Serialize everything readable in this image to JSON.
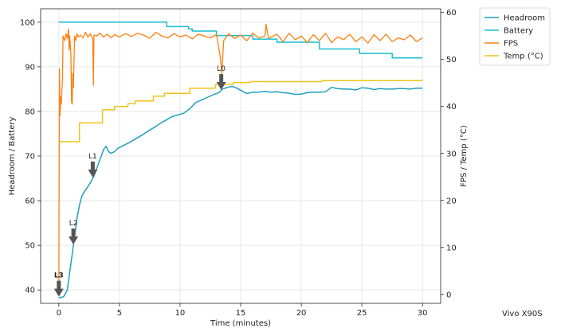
{
  "chart_data": {
    "type": "line",
    "xlabel": "Time (minutes)",
    "ylabel_left": "Headroom / Battery",
    "ylabel_right": "FPS / Temp (°C)",
    "xlim": [
      -1.5,
      31.5
    ],
    "ylim_left": [
      37,
      103
    ],
    "ylim_right": [
      -1.9,
      60.8
    ],
    "x_ticks": [
      0,
      5,
      10,
      15,
      20,
      25,
      30
    ],
    "y_ticks_left": [
      40,
      50,
      60,
      70,
      80,
      90,
      100
    ],
    "y_ticks_right": [
      0,
      10,
      20,
      30,
      40,
      50,
      60
    ],
    "grid": true,
    "legend_position": "outside-top-right",
    "series": [
      {
        "name": "Headroom",
        "axis": "left",
        "color": "#1f9fc4",
        "points": [
          [
            0,
            38.2
          ],
          [
            0.4,
            38.5
          ],
          [
            0.7,
            40
          ],
          [
            0.9,
            44
          ],
          [
            1.1,
            48
          ],
          [
            1.3,
            52
          ],
          [
            1.5,
            56
          ],
          [
            1.7,
            59
          ],
          [
            1.9,
            61
          ],
          [
            2.1,
            62
          ],
          [
            2.3,
            62.8
          ],
          [
            2.6,
            64
          ],
          [
            2.9,
            65.5
          ],
          [
            3.1,
            67
          ],
          [
            3.3,
            68.5
          ],
          [
            3.5,
            70
          ],
          [
            3.7,
            71.5
          ],
          [
            3.9,
            72.2
          ],
          [
            4.1,
            71
          ],
          [
            4.3,
            70.6
          ],
          [
            4.6,
            71
          ],
          [
            4.9,
            71.8
          ],
          [
            5.3,
            72.3
          ],
          [
            5.8,
            73
          ],
          [
            6.3,
            73.8
          ],
          [
            6.8,
            74.6
          ],
          [
            7.3,
            75.5
          ],
          [
            7.8,
            76.3
          ],
          [
            8.3,
            77.2
          ],
          [
            8.8,
            78
          ],
          [
            9.3,
            78.8
          ],
          [
            9.8,
            79.2
          ],
          [
            10.3,
            79.6
          ],
          [
            10.8,
            80.6
          ],
          [
            11.3,
            82
          ],
          [
            11.8,
            82.6
          ],
          [
            12.3,
            83.2
          ],
          [
            12.8,
            83.8
          ],
          [
            13.2,
            84.2
          ],
          [
            13.5,
            85
          ],
          [
            13.9,
            85.4
          ],
          [
            14.3,
            85.6
          ],
          [
            14.7,
            85.2
          ],
          [
            15.1,
            84.6
          ],
          [
            15.5,
            84
          ],
          [
            16,
            84.3
          ],
          [
            16.5,
            84.3
          ],
          [
            17,
            84.5
          ],
          [
            17.5,
            84.3
          ],
          [
            18,
            84.4
          ],
          [
            18.5,
            84.2
          ],
          [
            19,
            84.1
          ],
          [
            19.5,
            83.8
          ],
          [
            20,
            83.9
          ],
          [
            20.5,
            84.2
          ],
          [
            21,
            84.3
          ],
          [
            21.5,
            84.3
          ],
          [
            22,
            84.4
          ],
          [
            22.5,
            85.4
          ],
          [
            23,
            85.1
          ],
          [
            23.5,
            85
          ],
          [
            24,
            85
          ],
          [
            24.5,
            84.8
          ],
          [
            25,
            85.3
          ],
          [
            25.5,
            85.2
          ],
          [
            26,
            84.9
          ],
          [
            26.5,
            85.1
          ],
          [
            27,
            85
          ],
          [
            27.5,
            85
          ],
          [
            28,
            85.1
          ],
          [
            28.5,
            85.1
          ],
          [
            29,
            85
          ],
          [
            29.5,
            85.2
          ],
          [
            30,
            85.2
          ]
        ]
      },
      {
        "name": "Battery",
        "axis": "left",
        "color": "#17becf",
        "points": [
          [
            0,
            100
          ],
          [
            8.9,
            100
          ],
          [
            8.9,
            99
          ],
          [
            10.7,
            99
          ],
          [
            10.7,
            98.5
          ],
          [
            11,
            98.5
          ],
          [
            11,
            98
          ],
          [
            13,
            98
          ],
          [
            13,
            97
          ],
          [
            16,
            97
          ],
          [
            16,
            96.2
          ],
          [
            18,
            96.2
          ],
          [
            18,
            95.5
          ],
          [
            21.5,
            95.5
          ],
          [
            21.5,
            94
          ],
          [
            24.8,
            94
          ],
          [
            24.8,
            93
          ],
          [
            27.5,
            93
          ],
          [
            27.5,
            92
          ],
          [
            30,
            92
          ]
        ]
      },
      {
        "name": "FPS",
        "axis": "right",
        "color": "#ff7f0e",
        "points": [
          [
            0,
            0
          ],
          [
            0.05,
            48
          ],
          [
            0.1,
            38
          ],
          [
            0.15,
            42
          ],
          [
            0.2,
            40.5
          ],
          [
            0.3,
            46
          ],
          [
            0.35,
            55
          ],
          [
            0.5,
            54
          ],
          [
            0.6,
            55.5
          ],
          [
            0.7,
            54.5
          ],
          [
            0.8,
            56.5
          ],
          [
            0.85,
            52
          ],
          [
            0.9,
            55
          ],
          [
            1,
            51
          ],
          [
            1.05,
            41
          ],
          [
            1.1,
            40.5
          ],
          [
            1.15,
            47
          ],
          [
            1.2,
            44
          ],
          [
            1.3,
            55
          ],
          [
            1.4,
            54
          ],
          [
            1.5,
            55.5
          ],
          [
            1.6,
            54.8
          ],
          [
            1.8,
            55.2
          ],
          [
            2,
            54.6
          ],
          [
            2.2,
            55.8
          ],
          [
            2.4,
            54.8
          ],
          [
            2.6,
            55.5
          ],
          [
            2.8,
            54.4
          ],
          [
            2.85,
            44.5
          ],
          [
            2.9,
            55.2
          ],
          [
            3.1,
            55
          ],
          [
            3.4,
            55.6
          ],
          [
            3.7,
            54.8
          ],
          [
            4,
            55.4
          ],
          [
            4.3,
            54.6
          ],
          [
            4.6,
            55.3
          ],
          [
            5,
            54.8
          ],
          [
            5.5,
            55.5
          ],
          [
            6,
            54.9
          ],
          [
            6.5,
            55.6
          ],
          [
            7,
            55.2
          ],
          [
            7.5,
            54.5
          ],
          [
            8,
            55.8
          ],
          [
            8.5,
            55
          ],
          [
            9,
            54.6
          ],
          [
            9.5,
            55.5
          ],
          [
            10,
            54.8
          ],
          [
            10.5,
            55.2
          ],
          [
            11,
            54.4
          ],
          [
            11.5,
            55.4
          ],
          [
            12,
            55
          ],
          [
            12.5,
            54.6
          ],
          [
            13,
            55.3
          ],
          [
            13.3,
            51
          ],
          [
            13.45,
            47
          ],
          [
            13.6,
            54
          ],
          [
            14,
            55.5
          ],
          [
            14.5,
            54.5
          ],
          [
            15,
            55.2
          ],
          [
            15.5,
            54
          ],
          [
            16,
            55.6
          ],
          [
            16.5,
            54.6
          ],
          [
            17,
            55
          ],
          [
            17.1,
            57.5
          ],
          [
            17.3,
            54.5
          ],
          [
            18,
            55.4
          ],
          [
            18.5,
            53.8
          ],
          [
            19,
            55.6
          ],
          [
            19.5,
            54.2
          ],
          [
            20,
            55
          ],
          [
            20.5,
            53.6
          ],
          [
            21,
            55.3
          ],
          [
            21.5,
            54
          ],
          [
            22,
            55.6
          ],
          [
            22.5,
            53.6
          ],
          [
            23,
            54.8
          ],
          [
            23.5,
            54.2
          ],
          [
            24,
            55.4
          ],
          [
            24.5,
            53.8
          ],
          [
            25,
            54.8
          ],
          [
            25.5,
            53.5
          ],
          [
            26,
            55.3
          ],
          [
            26.5,
            54
          ],
          [
            27,
            55.4
          ],
          [
            27.5,
            53.8
          ],
          [
            28,
            54.6
          ],
          [
            28.5,
            54.2
          ],
          [
            29,
            55.2
          ],
          [
            29.5,
            53.8
          ],
          [
            30,
            54.6
          ]
        ]
      },
      {
        "name": "Temp (°C)",
        "axis": "right",
        "color": "#f2c21a",
        "points": [
          [
            0,
            32.5
          ],
          [
            1.7,
            32.5
          ],
          [
            1.7,
            36.5
          ],
          [
            3.6,
            36.5
          ],
          [
            3.6,
            39.3
          ],
          [
            4.6,
            39.3
          ],
          [
            4.6,
            40
          ],
          [
            5.7,
            40
          ],
          [
            5.7,
            40.6
          ],
          [
            6.3,
            40.6
          ],
          [
            6.3,
            41.2
          ],
          [
            7.8,
            41.2
          ],
          [
            7.8,
            42.2
          ],
          [
            8.7,
            42.2
          ],
          [
            8.7,
            42.8
          ],
          [
            10.8,
            42.8
          ],
          [
            10.8,
            43.9
          ],
          [
            12.9,
            43.9
          ],
          [
            12.9,
            44.7
          ],
          [
            14.4,
            44.7
          ],
          [
            14.4,
            45.1
          ],
          [
            15.8,
            45.1
          ],
          [
            15.8,
            45.3
          ],
          [
            21.7,
            45.3
          ],
          [
            21.7,
            45.5
          ],
          [
            30,
            45.5
          ]
        ]
      }
    ],
    "annotations": [
      {
        "label": "L3",
        "x": 0,
        "y": 38.5,
        "bold": true
      },
      {
        "label": "L2",
        "x": 1.2,
        "y": 50.2,
        "bold": false
      },
      {
        "label": "L1",
        "x": 2.8,
        "y": 65.2,
        "bold": false
      },
      {
        "label": "L0",
        "x": 13.4,
        "y": 84.8,
        "bold": false
      }
    ]
  },
  "device_label": "Vivo X90S"
}
